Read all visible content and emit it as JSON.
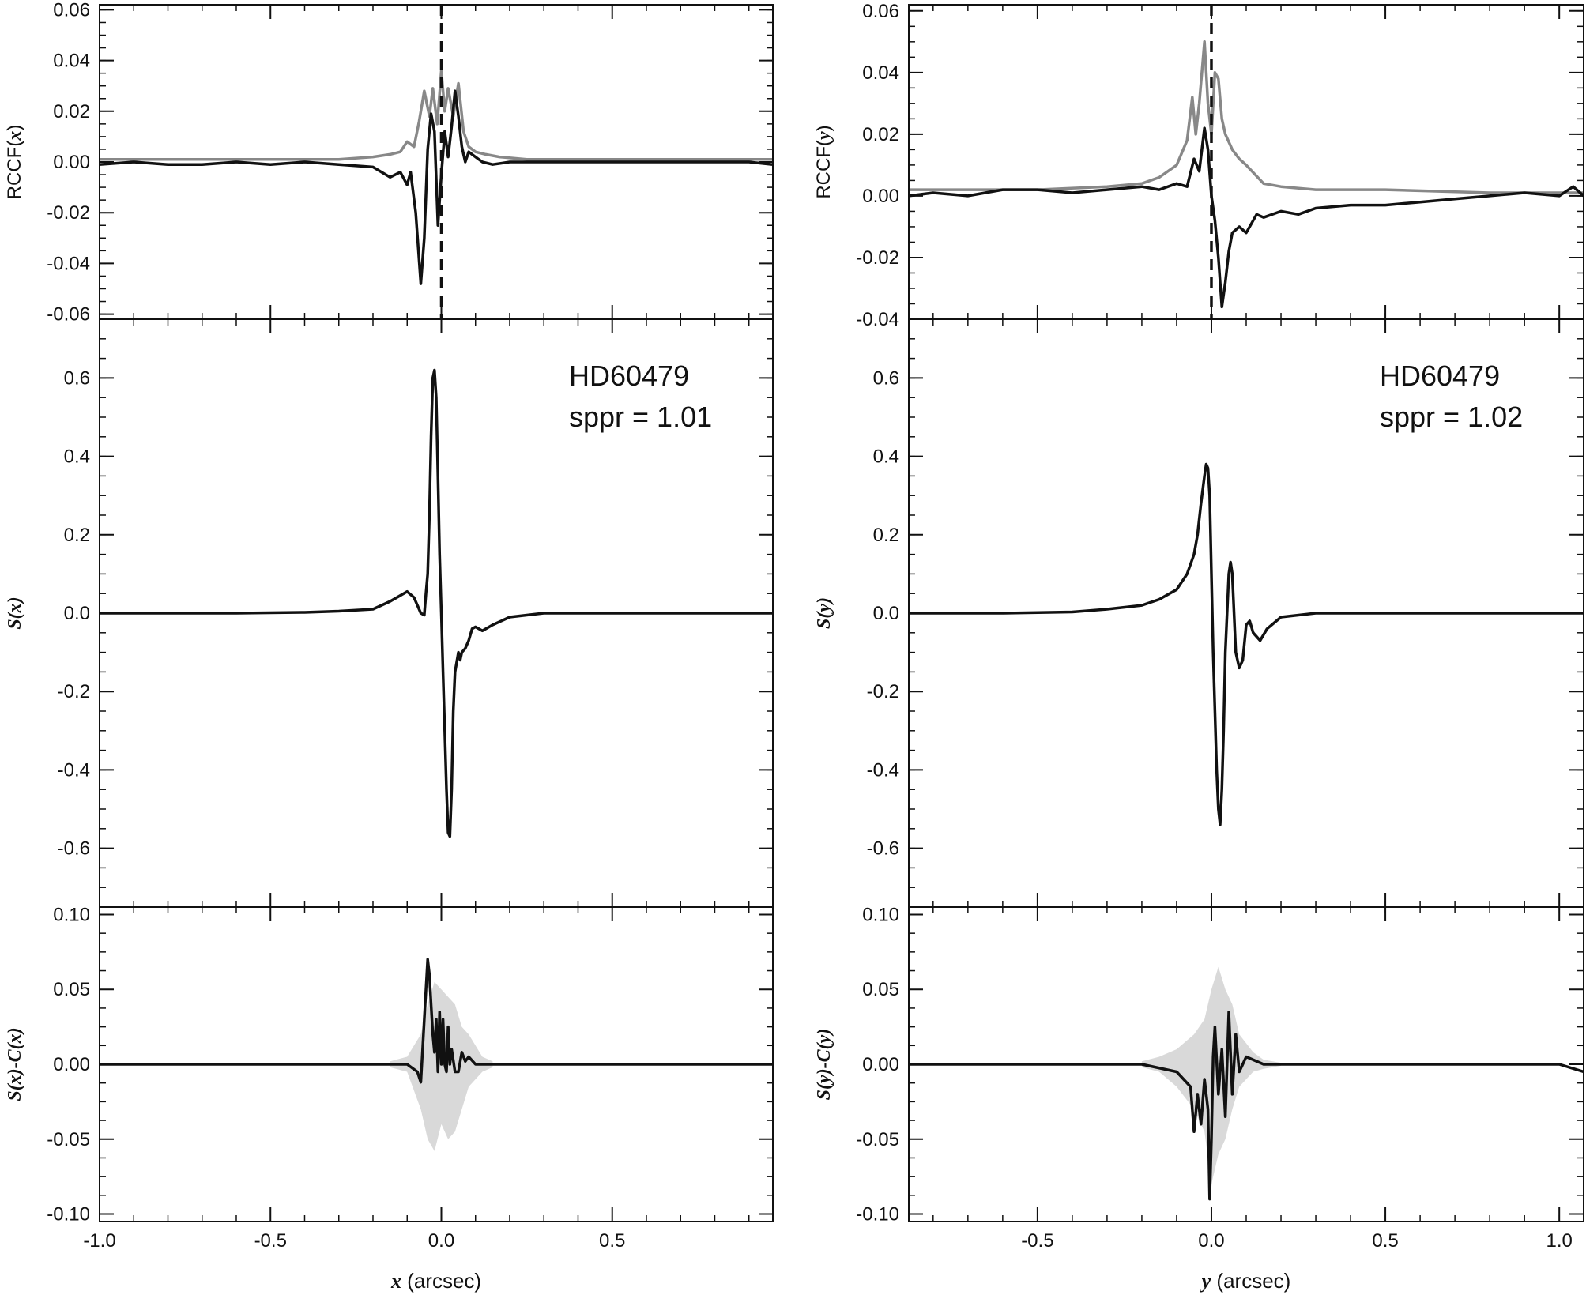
{
  "chart_data": [
    {
      "panel": "left",
      "type": "line",
      "x_ticks": [
        -1.0,
        -0.5,
        0.0,
        0.5
      ],
      "xlim": [
        -1.0,
        0.97
      ],
      "xlabel_var": "x",
      "xlabel_unit": " (arcsec)",
      "annotation": {
        "line1": "HD60479",
        "line2": "sppr = 1.01"
      },
      "colors": {
        "primary": "#111111",
        "secondary": "#888888",
        "band": "#d9d9d9"
      },
      "subplots": [
        {
          "id": "rccf",
          "ylabel_prefix": "RCCF(",
          "ylabel_var": "x",
          "ylabel_suffix": ")",
          "ylim": [
            -0.062,
            0.062
          ],
          "yticks": [
            -0.06,
            -0.04,
            -0.02,
            0.0,
            0.02,
            0.04,
            0.06
          ],
          "ytick_labels": [
            "-0.06",
            "-0.04",
            "-0.02",
            "0.00",
            "0.02",
            "0.04",
            "0.06"
          ],
          "reference_line_x": 0.0,
          "series": [
            {
              "style": "gray",
              "x": [
                -1.0,
                -0.3,
                -0.2,
                -0.15,
                -0.12,
                -0.1,
                -0.08,
                -0.065,
                -0.05,
                -0.035,
                -0.025,
                -0.012,
                0.0,
                0.01,
                0.02,
                0.035,
                0.05,
                0.065,
                0.08,
                0.1,
                0.13,
                0.17,
                0.25,
                0.4,
                0.97
              ],
              "y": [
                0.001,
                0.001,
                0.002,
                0.003,
                0.004,
                0.008,
                0.006,
                0.016,
                0.028,
                0.018,
                0.029,
                0.015,
                0.036,
                0.02,
                0.029,
                0.018,
                0.031,
                0.012,
                0.006,
                0.004,
                0.003,
                0.002,
                0.001,
                0.001,
                0.001
              ]
            },
            {
              "style": "black",
              "x": [
                -1.0,
                -0.9,
                -0.8,
                -0.7,
                -0.6,
                -0.5,
                -0.4,
                -0.3,
                -0.2,
                -0.15,
                -0.12,
                -0.1,
                -0.09,
                -0.075,
                -0.06,
                -0.05,
                -0.04,
                -0.03,
                -0.02,
                -0.01,
                0.0,
                0.01,
                0.02,
                0.03,
                0.04,
                0.05,
                0.06,
                0.07,
                0.08,
                0.1,
                0.12,
                0.15,
                0.2,
                0.3,
                0.4,
                0.5,
                0.6,
                0.7,
                0.8,
                0.9,
                0.97
              ],
              "y": [
                -0.001,
                0.0,
                -0.001,
                -0.001,
                0.0,
                -0.001,
                0.0,
                -0.001,
                -0.002,
                -0.006,
                -0.004,
                -0.009,
                -0.004,
                -0.02,
                -0.048,
                -0.03,
                0.005,
                0.019,
                0.012,
                -0.025,
                -0.005,
                0.012,
                0.002,
                0.014,
                0.028,
                0.018,
                0.006,
                0.0,
                0.004,
                0.002,
                0.0,
                -0.001,
                0.0,
                0.0,
                0.0,
                0.0,
                0.0,
                0.0,
                0.0,
                0.0,
                -0.001
              ]
            }
          ]
        },
        {
          "id": "s",
          "ylabel_prefix": "",
          "ylabel_var": "S(x)",
          "ylabel_suffix": "",
          "ylim": [
            -0.75,
            0.75
          ],
          "yticks": [
            -0.6,
            -0.4,
            -0.2,
            0.0,
            0.2,
            0.4,
            0.6
          ],
          "ytick_labels": [
            "-0.6",
            "-0.4",
            "-0.2",
            "0.0",
            "0.2",
            "0.4",
            "0.6"
          ],
          "series": [
            {
              "style": "black",
              "x": [
                -1.0,
                -0.8,
                -0.6,
                -0.4,
                -0.3,
                -0.2,
                -0.15,
                -0.12,
                -0.1,
                -0.08,
                -0.07,
                -0.06,
                -0.05,
                -0.045,
                -0.04,
                -0.035,
                -0.03,
                -0.025,
                -0.02,
                -0.015,
                -0.01,
                -0.005,
                0.0,
                0.005,
                0.01,
                0.015,
                0.02,
                0.025,
                0.03,
                0.035,
                0.04,
                0.05,
                0.055,
                0.06,
                0.07,
                0.08,
                0.09,
                0.1,
                0.12,
                0.15,
                0.2,
                0.3,
                0.5,
                0.7,
                0.97
              ],
              "y": [
                0.0,
                0.0,
                0.0,
                0.002,
                0.005,
                0.01,
                0.03,
                0.045,
                0.055,
                0.04,
                0.02,
                0.0,
                -0.005,
                0.05,
                0.1,
                0.25,
                0.45,
                0.6,
                0.62,
                0.55,
                0.35,
                0.15,
                0.0,
                -0.15,
                -0.3,
                -0.45,
                -0.56,
                -0.57,
                -0.45,
                -0.25,
                -0.15,
                -0.1,
                -0.12,
                -0.1,
                -0.09,
                -0.07,
                -0.04,
                -0.035,
                -0.045,
                -0.03,
                -0.01,
                0.0,
                0.0,
                0.0,
                0.0
              ]
            }
          ]
        },
        {
          "id": "resid",
          "ylabel_prefix": "",
          "ylabel_var": "S(x)-C(x)",
          "ylabel_suffix": "",
          "ylim": [
            -0.105,
            0.105
          ],
          "yticks": [
            -0.1,
            -0.05,
            0.0,
            0.05,
            0.1
          ],
          "ytick_labels": [
            "-0.10",
            "-0.05",
            "0.00",
            "0.05",
            "0.10"
          ],
          "band": {
            "x": [
              -0.15,
              -0.1,
              -0.06,
              -0.04,
              -0.02,
              0.0,
              0.02,
              0.04,
              0.06,
              0.08,
              0.12,
              0.15
            ],
            "upper": [
              0.002,
              0.005,
              0.02,
              0.04,
              0.055,
              0.05,
              0.045,
              0.04,
              0.025,
              0.02,
              0.005,
              0.002
            ],
            "lower": [
              -0.002,
              -0.005,
              -0.03,
              -0.05,
              -0.058,
              -0.04,
              -0.05,
              -0.045,
              -0.03,
              -0.015,
              -0.005,
              -0.002
            ]
          },
          "series": [
            {
              "style": "black",
              "x": [
                -1.0,
                -0.8,
                -0.6,
                -0.4,
                -0.2,
                -0.1,
                -0.07,
                -0.06,
                -0.05,
                -0.04,
                -0.035,
                -0.03,
                -0.025,
                -0.02,
                -0.015,
                -0.01,
                -0.005,
                0.0,
                0.005,
                0.01,
                0.015,
                0.02,
                0.025,
                0.03,
                0.04,
                0.05,
                0.06,
                0.07,
                0.08,
                0.1,
                0.2,
                0.4,
                0.6,
                0.8,
                0.97
              ],
              "y": [
                0.0,
                0.0,
                0.0,
                0.0,
                0.0,
                0.0,
                -0.005,
                -0.012,
                0.03,
                0.07,
                0.06,
                0.04,
                0.02,
                0.008,
                0.03,
                -0.005,
                0.035,
                0.0,
                0.03,
                0.0,
                -0.005,
                0.025,
                0.0,
                0.01,
                -0.005,
                -0.005,
                0.008,
                0.002,
                0.005,
                0.0,
                0.0,
                0.0,
                0.0,
                0.0,
                0.0
              ]
            }
          ]
        }
      ]
    },
    {
      "panel": "right",
      "type": "line",
      "x_ticks": [
        -0.5,
        0.0,
        0.5,
        1.0
      ],
      "xlim": [
        -0.87,
        1.07
      ],
      "xlabel_var": "y",
      "xlabel_unit": " (arcsec)",
      "annotation": {
        "line1": "HD60479",
        "line2": "sppr = 1.02"
      },
      "colors": {
        "primary": "#111111",
        "secondary": "#888888",
        "band": "#d9d9d9"
      },
      "subplots": [
        {
          "id": "rccf",
          "ylabel_prefix": "RCCF(",
          "ylabel_var": "y",
          "ylabel_suffix": ")",
          "ylim": [
            -0.04,
            0.062
          ],
          "yticks": [
            -0.04,
            -0.02,
            0.0,
            0.02,
            0.04,
            0.06
          ],
          "ytick_labels": [
            "-0.04",
            "-0.02",
            "0.00",
            "0.02",
            "0.04",
            "0.06"
          ],
          "reference_line_x": 0.0,
          "series": [
            {
              "style": "gray",
              "x": [
                -0.87,
                -0.5,
                -0.3,
                -0.2,
                -0.15,
                -0.1,
                -0.07,
                -0.055,
                -0.045,
                -0.035,
                -0.02,
                -0.01,
                0.0,
                0.01,
                0.02,
                0.03,
                0.04,
                0.06,
                0.08,
                0.1,
                0.15,
                0.2,
                0.3,
                0.5,
                0.8,
                1.07
              ],
              "y": [
                0.002,
                0.002,
                0.003,
                0.004,
                0.006,
                0.01,
                0.018,
                0.032,
                0.02,
                0.03,
                0.05,
                0.03,
                0.02,
                0.04,
                0.038,
                0.025,
                0.02,
                0.015,
                0.012,
                0.01,
                0.004,
                0.003,
                0.002,
                0.002,
                0.001,
                0.001
              ]
            },
            {
              "style": "black",
              "x": [
                -0.87,
                -0.8,
                -0.7,
                -0.6,
                -0.5,
                -0.4,
                -0.3,
                -0.2,
                -0.15,
                -0.1,
                -0.07,
                -0.05,
                -0.035,
                -0.02,
                -0.01,
                0.0,
                0.01,
                0.02,
                0.03,
                0.04,
                0.05,
                0.06,
                0.08,
                0.1,
                0.13,
                0.15,
                0.2,
                0.25,
                0.3,
                0.4,
                0.5,
                0.6,
                0.7,
                0.8,
                0.9,
                1.0,
                1.04,
                1.07
              ],
              "y": [
                0.0,
                0.001,
                0.0,
                0.002,
                0.002,
                0.001,
                0.002,
                0.003,
                0.002,
                0.004,
                0.003,
                0.012,
                0.008,
                0.022,
                0.015,
                0.0,
                -0.008,
                -0.02,
                -0.036,
                -0.028,
                -0.018,
                -0.012,
                -0.01,
                -0.012,
                -0.006,
                -0.007,
                -0.005,
                -0.006,
                -0.004,
                -0.003,
                -0.003,
                -0.002,
                -0.001,
                0.0,
                0.001,
                0.0,
                0.003,
                0.0
              ]
            }
          ]
        },
        {
          "id": "s",
          "ylabel_prefix": "",
          "ylabel_var": "S(y)",
          "ylabel_suffix": "",
          "ylim": [
            -0.75,
            0.75
          ],
          "yticks": [
            -0.6,
            -0.4,
            -0.2,
            0.0,
            0.2,
            0.4,
            0.6
          ],
          "ytick_labels": [
            "-0.6",
            "-0.4",
            "-0.2",
            "0.0",
            "0.2",
            "0.4",
            "0.6"
          ],
          "series": [
            {
              "style": "black",
              "x": [
                -0.87,
                -0.6,
                -0.4,
                -0.3,
                -0.2,
                -0.15,
                -0.1,
                -0.07,
                -0.05,
                -0.04,
                -0.03,
                -0.02,
                -0.015,
                -0.01,
                -0.005,
                0.0,
                0.005,
                0.01,
                0.015,
                0.02,
                0.025,
                0.03,
                0.035,
                0.04,
                0.05,
                0.055,
                0.06,
                0.065,
                0.07,
                0.08,
                0.09,
                0.1,
                0.11,
                0.12,
                0.14,
                0.16,
                0.2,
                0.3,
                0.5,
                0.7,
                0.9,
                1.07
              ],
              "y": [
                0.0,
                0.0,
                0.003,
                0.01,
                0.02,
                0.035,
                0.06,
                0.1,
                0.15,
                0.2,
                0.28,
                0.35,
                0.38,
                0.37,
                0.3,
                0.1,
                -0.1,
                -0.25,
                -0.4,
                -0.5,
                -0.54,
                -0.45,
                -0.3,
                -0.1,
                0.1,
                0.13,
                0.1,
                0.0,
                -0.1,
                -0.14,
                -0.12,
                -0.03,
                -0.02,
                -0.05,
                -0.07,
                -0.04,
                -0.01,
                0.0,
                0.0,
                0.0,
                0.0,
                0.0
              ]
            }
          ]
        },
        {
          "id": "resid",
          "ylabel_prefix": "",
          "ylabel_var": "S(y)-C(y)",
          "ylabel_suffix": "",
          "ylim": [
            -0.105,
            0.105
          ],
          "yticks": [
            -0.1,
            -0.05,
            0.0,
            0.05,
            0.1
          ],
          "ytick_labels": [
            "-0.10",
            "-0.05",
            "0.00",
            "0.05",
            "0.10"
          ],
          "band": {
            "x": [
              -0.2,
              -0.15,
              -0.1,
              -0.05,
              -0.02,
              0.0,
              0.02,
              0.04,
              0.06,
              0.08,
              0.12,
              0.15,
              0.2
            ],
            "upper": [
              0.002,
              0.005,
              0.01,
              0.02,
              0.03,
              0.05,
              0.065,
              0.05,
              0.04,
              0.02,
              0.008,
              0.003,
              0.001
            ],
            "lower": [
              -0.002,
              -0.005,
              -0.015,
              -0.03,
              -0.045,
              -0.08,
              -0.06,
              -0.05,
              -0.03,
              -0.015,
              -0.005,
              -0.003,
              -0.001
            ]
          },
          "series": [
            {
              "style": "black",
              "x": [
                -0.87,
                -0.6,
                -0.4,
                -0.2,
                -0.1,
                -0.06,
                -0.05,
                -0.04,
                -0.03,
                -0.02,
                -0.01,
                -0.005,
                0.0,
                0.005,
                0.01,
                0.02,
                0.03,
                0.04,
                0.05,
                0.06,
                0.07,
                0.08,
                0.1,
                0.15,
                0.2,
                0.4,
                0.6,
                0.8,
                1.0,
                1.07
              ],
              "y": [
                0.0,
                0.0,
                0.0,
                0.0,
                -0.005,
                -0.015,
                -0.045,
                -0.02,
                -0.04,
                -0.01,
                -0.03,
                -0.09,
                -0.05,
                0.005,
                0.025,
                -0.02,
                0.01,
                -0.035,
                0.035,
                -0.02,
                0.02,
                -0.005,
                0.005,
                0.0,
                0.0,
                0.0,
                0.0,
                0.0,
                0.0,
                -0.005
              ]
            }
          ]
        }
      ]
    }
  ]
}
